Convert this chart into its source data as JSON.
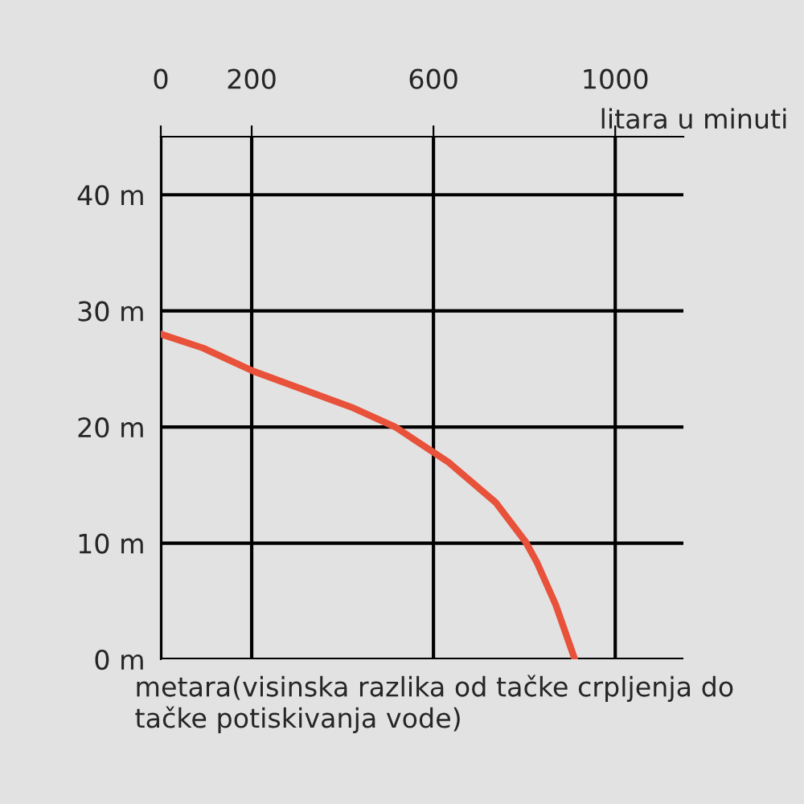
{
  "chart_data": {
    "type": "line",
    "xlabel": "litara u minuti",
    "annotations": [
      "metara(visinska razlika od tačke crpljenja do tačke potiskivanja vode)"
    ],
    "series": [
      {
        "color": "#e8513a",
        "x": [
          0,
          93,
          204,
          420,
          516,
          632,
          737,
          803,
          827,
          869,
          911
        ],
        "values": [
          28,
          26.8,
          24.8,
          21.7,
          20,
          17,
          13.5,
          10.1,
          8.4,
          4.7,
          0
        ]
      }
    ],
    "xlim": [
      0,
      1150
    ],
    "xticks": [
      0,
      200,
      600,
      1000
    ],
    "ylim": [
      0,
      45
    ],
    "yticks": [
      {
        "value": 0,
        "label": "0 m"
      },
      {
        "value": 10,
        "label": "10 m"
      },
      {
        "value": 20,
        "label": "20 m"
      },
      {
        "value": 30,
        "label": "30 m"
      },
      {
        "value": 40,
        "label": "40 m"
      }
    ],
    "grid": true,
    "marker": "none",
    "line_style": "solid"
  }
}
